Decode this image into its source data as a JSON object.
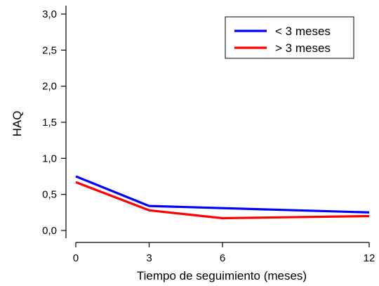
{
  "chart_data": {
    "type": "line",
    "title": "",
    "xlabel": "Tiempo de seguimiento (meses)",
    "ylabel": "HAQ",
    "xlim": [
      0,
      12
    ],
    "ylim": [
      0,
      3
    ],
    "x_ticks": [
      0,
      3,
      6,
      12
    ],
    "x_tick_labels": [
      "0",
      "3",
      "6",
      "12"
    ],
    "y_ticks": [
      0,
      0.5,
      1,
      1.5,
      2,
      2.5,
      3
    ],
    "y_tick_labels": [
      "0,0",
      "0,5",
      "1,0",
      "1,5",
      "2,0",
      "2,5",
      "3,0"
    ],
    "x": [
      0,
      3,
      6,
      12
    ],
    "series": [
      {
        "name": "< 3 meses",
        "color": "#0000ff",
        "values": [
          0.75,
          0.34,
          0.31,
          0.25
        ]
      },
      {
        "name": "> 3 meses",
        "color": "#ff0000",
        "values": [
          0.67,
          0.28,
          0.17,
          0.2
        ]
      }
    ],
    "grid": false,
    "legend_position": "top-right"
  }
}
